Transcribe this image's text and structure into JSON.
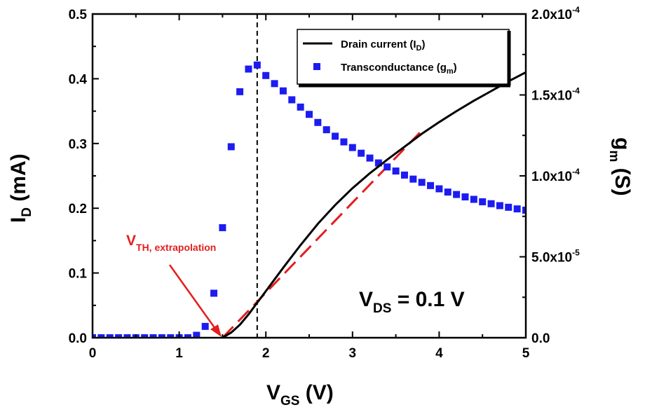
{
  "chart_data": {
    "type": "line",
    "x_axis": {
      "label_main": "V",
      "label_sub": "GS",
      "label_unit": " (V)",
      "range": [
        0,
        5
      ],
      "ticks": [
        0,
        1,
        2,
        3,
        4,
        5
      ],
      "tick_labels": [
        "0",
        "1",
        "2",
        "3",
        "4",
        "5"
      ]
    },
    "y_left": {
      "label_main": "I",
      "label_sub": "D",
      "label_unit": " (mA)",
      "range": [
        0,
        0.5
      ],
      "ticks": [
        0,
        0.1,
        0.2,
        0.3,
        0.4,
        0.5
      ],
      "tick_labels": [
        "0.0",
        "0.1",
        "0.2",
        "0.3",
        "0.4",
        "0.5"
      ]
    },
    "y_right": {
      "label_main": "g",
      "label_sub": "m",
      "label_unit": " (S)",
      "range": [
        0,
        0.0002
      ],
      "ticks": [
        {
          "value": 0,
          "base": "0.0",
          "exp": ""
        },
        {
          "value": 5e-05,
          "base": "5.0x10",
          "exp": "-5"
        },
        {
          "value": 0.0001,
          "base": "1.0x10",
          "exp": "-4"
        },
        {
          "value": 0.00015,
          "base": "1.5x10",
          "exp": "-4"
        },
        {
          "value": 0.0002,
          "base": "2.0x10",
          "exp": "-4"
        }
      ]
    },
    "series": [
      {
        "name": "Drain current (I",
        "name_sub": "D",
        "name_end": ")",
        "axis": "left",
        "style": "line",
        "color": "#000000",
        "x": [
          1.5,
          1.6,
          1.7,
          1.8,
          1.9,
          2.0,
          2.2,
          2.4,
          2.6,
          2.8,
          3.0,
          3.2,
          3.4,
          3.6,
          3.8,
          4.0,
          4.2,
          4.4,
          4.6,
          4.8,
          5.0
        ],
        "y": [
          0.0,
          0.008,
          0.02,
          0.036,
          0.054,
          0.072,
          0.108,
          0.143,
          0.176,
          0.205,
          0.231,
          0.254,
          0.275,
          0.295,
          0.315,
          0.333,
          0.35,
          0.366,
          0.381,
          0.396,
          0.41
        ]
      },
      {
        "name": "Transconductance (g",
        "name_sub": "m",
        "name_end": ")",
        "axis": "right",
        "style": "markers",
        "color": "#1c1cf0",
        "x": [
          0,
          0.1,
          0.2,
          0.3,
          0.4,
          0.5,
          0.6,
          0.7,
          0.8,
          0.9,
          1.0,
          1.1,
          1.2,
          1.3,
          1.4,
          1.5,
          1.6,
          1.7,
          1.8,
          1.9,
          2.0,
          2.1,
          2.2,
          2.3,
          2.4,
          2.5,
          2.6,
          2.7,
          2.8,
          2.9,
          3.0,
          3.1,
          3.2,
          3.3,
          3.4,
          3.5,
          3.6,
          3.7,
          3.8,
          3.9,
          4.0,
          4.1,
          4.2,
          4.3,
          4.4,
          4.5,
          4.6,
          4.7,
          4.8,
          4.9,
          5.0
        ],
        "y": [
          0,
          0,
          0,
          0,
          0,
          0,
          0,
          0,
          0,
          0,
          0,
          0,
          1.5e-06,
          7e-06,
          2.75e-05,
          6.8e-05,
          0.000118,
          0.000152,
          0.000166,
          0.0001685,
          0.000162,
          0.000157,
          0.0001525,
          0.000147,
          0.0001425,
          0.000138,
          0.000133,
          0.0001285,
          0.0001245,
          0.000121,
          0.0001175,
          0.000114,
          0.000111,
          0.000108,
          0.0001055,
          0.000103,
          0.0001005,
          9.8e-05,
          9.6e-05,
          9.4e-05,
          9.2e-05,
          9e-05,
          8.85e-05,
          8.7e-05,
          8.55e-05,
          8.4e-05,
          8.28e-05,
          8.16e-05,
          8.06e-05,
          7.96e-05,
          7.88e-05
        ]
      }
    ],
    "extrapolation_line": {
      "color": "#e41e1e",
      "style": "dashed",
      "x": [
        1.5,
        3.8
      ],
      "y": [
        0.0,
        0.32
      ]
    },
    "vgs_marker": {
      "x": 1.9,
      "style": "dashed",
      "color": "#000000"
    },
    "annotations": {
      "vds": {
        "main": "V",
        "sub": "DS",
        "rest": " = 0.1 V"
      },
      "vth": {
        "main": "V",
        "sub": "TH, extrapolation",
        "color": "#e41e1e",
        "point_x": 1.5,
        "point_y": 0.0
      }
    },
    "legend_position": "top-right",
    "grid": false
  }
}
